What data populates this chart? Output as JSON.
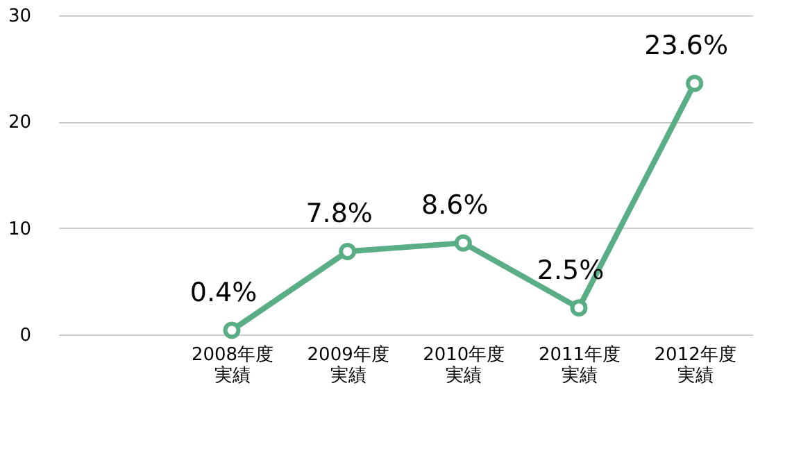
{
  "chart_data": {
    "type": "line",
    "categories": [
      null,
      "2008年度実績",
      "2009年度実績",
      "2010年度実績",
      "2011年度実績",
      "2012年度実績"
    ],
    "series": [
      {
        "color": "#5aae86",
        "values": [
          null,
          0.4,
          7.8,
          8.6,
          2.5,
          23.6
        ],
        "value_labels": [
          null,
          "0.4%",
          "7.8%",
          "8.6%",
          "2.5%",
          "23.6%"
        ]
      }
    ],
    "ylim": [
      0,
      30
    ],
    "yticks": [
      0,
      10,
      20,
      30
    ],
    "grid": "y",
    "marker": "circle",
    "line_style": "solid"
  }
}
